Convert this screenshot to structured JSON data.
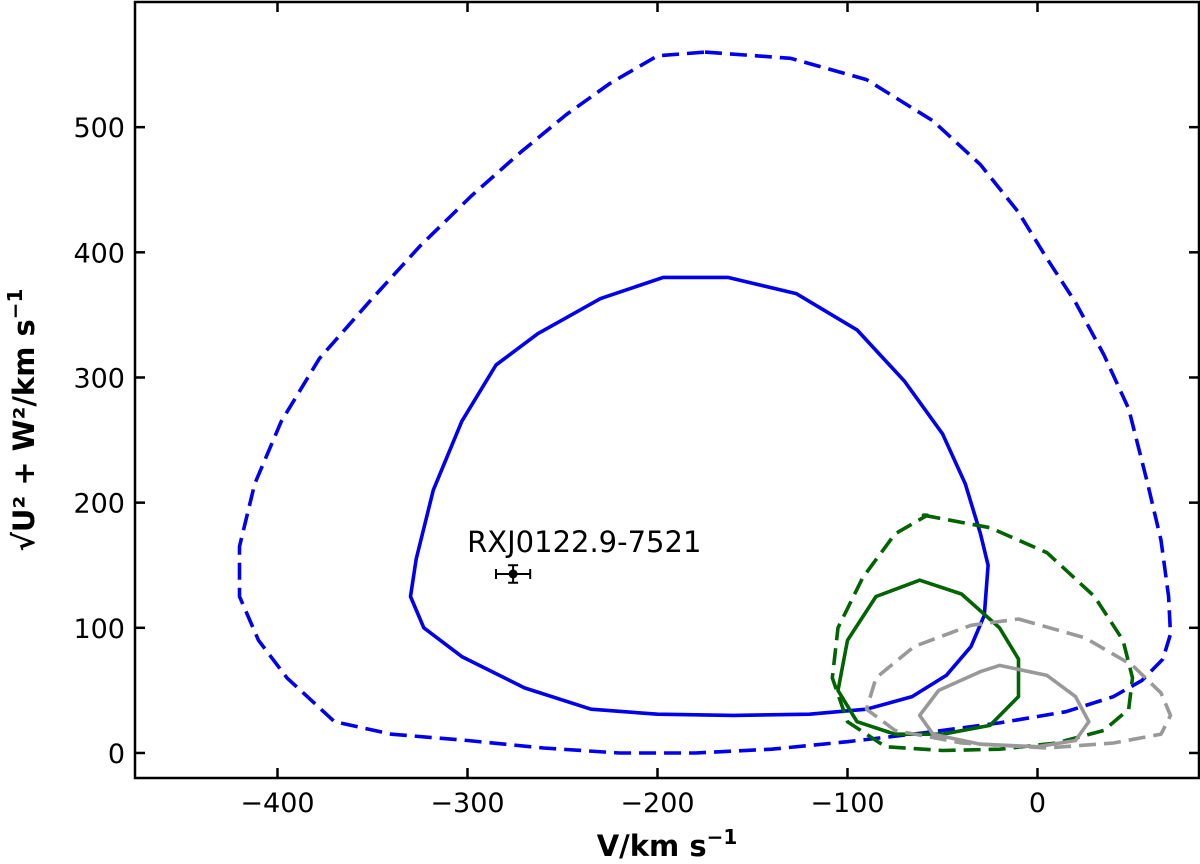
{
  "chart_data": {
    "type": "line",
    "title": "",
    "xlabel": "V/km s",
    "xlabel_exponent": "−1",
    "ylabel": "√U² + W²/km s",
    "ylabel_exponent": "−1",
    "xlim": [
      -475,
      85
    ],
    "ylim": [
      -20,
      600
    ],
    "xticks": [
      -400,
      -300,
      -200,
      -100,
      0
    ],
    "xtick_labels": [
      "−400",
      "−300",
      "−200",
      "−100",
      "0"
    ],
    "yticks": [
      0,
      100,
      200,
      300,
      400,
      500
    ],
    "ytick_labels": [
      "0",
      "100",
      "200",
      "300",
      "400",
      "500"
    ],
    "grid": false,
    "series": [
      {
        "color": "#0000ee",
        "dash": "dashed",
        "x": [
          -175,
          -130,
          -90,
          -55,
          -30,
          -10,
          5,
          20,
          35,
          48,
          58,
          65,
          69,
          70,
          66,
          55,
          40,
          15,
          -20,
          -60,
          -100,
          -140,
          -180,
          -220,
          -260,
          -300,
          -340,
          -370,
          -395,
          -410,
          -420,
          -420,
          -412,
          -398,
          -378,
          -352,
          -325,
          -298,
          -272,
          -248,
          -225,
          -200
        ],
        "y": [
          560,
          555,
          538,
          505,
          470,
          432,
          395,
          360,
          318,
          275,
          215,
          170,
          125,
          95,
          75,
          58,
          45,
          33,
          24,
          16,
          9,
          3,
          0,
          0,
          4,
          10,
          15,
          25,
          60,
          90,
          125,
          165,
          215,
          265,
          315,
          360,
          405,
          445,
          480,
          510,
          535,
          557
        ]
      },
      {
        "color": "#0000ee",
        "dash": "solid",
        "x": [
          -163,
          -127,
          -95,
          -70,
          -50,
          -38,
          -30,
          -26,
          -28,
          -35,
          -48,
          -66,
          -90,
          -120,
          -160,
          -200,
          -235,
          -270,
          -303,
          -323,
          -330,
          -327,
          -318,
          -303,
          -285,
          -263,
          -230,
          -197
        ],
        "y": [
          380,
          367,
          338,
          297,
          255,
          215,
          175,
          150,
          110,
          85,
          62,
          45,
          35,
          31,
          30,
          31,
          35,
          52,
          77,
          100,
          125,
          155,
          210,
          265,
          310,
          335,
          363,
          380
        ],
        "label_text": "RXJ0122.9-7521"
      },
      {
        "color": "#006400",
        "dash": "dashed",
        "x": [
          -60,
          -25,
          5,
          30,
          45,
          50,
          48,
          35,
          10,
          -20,
          -50,
          -80,
          -100,
          -108,
          -105,
          -92,
          -75,
          -58
        ],
        "y": [
          190,
          180,
          160,
          125,
          90,
          60,
          35,
          18,
          8,
          3,
          2,
          5,
          25,
          60,
          100,
          140,
          175,
          190
        ],
        "label_text": ""
      },
      {
        "color": "#006400",
        "dash": "solid",
        "x": [
          -62,
          -40,
          -20,
          -10,
          -10,
          -25,
          -50,
          -75,
          -95,
          -105,
          -100,
          -85,
          -62
        ],
        "y": [
          138,
          127,
          100,
          75,
          45,
          22,
          15,
          15,
          25,
          50,
          90,
          125,
          138
        ],
        "label_text": ""
      },
      {
        "color": "#999999",
        "dash": "dashed",
        "x": [
          -10,
          25,
          50,
          65,
          70,
          65,
          40,
          5,
          -40,
          -75,
          -90,
          -85,
          -65,
          -35,
          -10
        ],
        "y": [
          107,
          92,
          70,
          48,
          30,
          15,
          8,
          4,
          8,
          18,
          35,
          60,
          85,
          102,
          107
        ],
        "label_text": ""
      },
      {
        "color": "#999999",
        "dash": "solid",
        "x": [
          -20,
          5,
          20,
          27,
          20,
          0,
          -30,
          -55,
          -62,
          -52,
          -30,
          -20
        ],
        "y": [
          70,
          62,
          45,
          25,
          10,
          5,
          7,
          15,
          30,
          50,
          65,
          70
        ],
        "label_text": ""
      }
    ],
    "points": [
      {
        "label": "RXJ0122.9-7521",
        "x": -276,
        "y": 143,
        "xerr": 9,
        "yerr": 7
      }
    ],
    "colors": {
      "axis": "#000000"
    }
  }
}
